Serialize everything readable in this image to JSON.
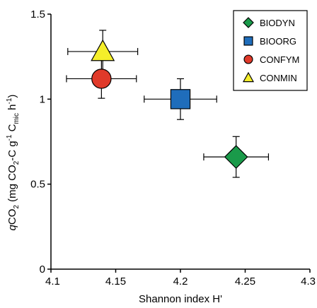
{
  "chart_data": {
    "type": "scatter",
    "title": "",
    "xlabel": "Shannon index H'",
    "ylabel_parts": {
      "q": "q",
      "co2": "CO",
      "sub2": "2",
      "open": " (mg CO",
      "sub2b": "2",
      "mid": "-C g",
      "sup": "-1",
      "c": " C",
      "mic": "mic",
      "h": " h",
      "sup2": "-1",
      "close": ")"
    },
    "xlim": [
      4.1,
      4.3
    ],
    "ylim": [
      0,
      1.5
    ],
    "xticks": [
      4.1,
      4.15,
      4.2,
      4.25,
      4.3
    ],
    "xtick_labels": [
      "4.1",
      "4.15",
      "4.2",
      "4.25",
      "4.3"
    ],
    "yticks": [
      0,
      0.5,
      1,
      1.5
    ],
    "ytick_labels": [
      "0",
      "0.5",
      "1",
      "1.5"
    ],
    "grid": false,
    "legend_position": "top-right",
    "series": [
      {
        "name": "BIODYN",
        "marker": "diamond",
        "color": "#1a9a4a",
        "x": 4.243,
        "y": 0.66,
        "xerr": 0.025,
        "yerr": 0.12
      },
      {
        "name": "BIOORG",
        "marker": "square",
        "color": "#1f6dbb",
        "x": 4.2,
        "y": 1.0,
        "xerr": 0.028,
        "yerr": 0.12
      },
      {
        "name": "CONFYM",
        "marker": "circle",
        "color": "#e03a2a",
        "x": 4.139,
        "y": 1.12,
        "xerr": 0.027,
        "yerr": 0.115
      },
      {
        "name": "CONMIN",
        "marker": "triangle",
        "color": "#f5ee2a",
        "x": 4.14,
        "y": 1.28,
        "xerr": 0.027,
        "yerr": 0.125
      }
    ]
  }
}
